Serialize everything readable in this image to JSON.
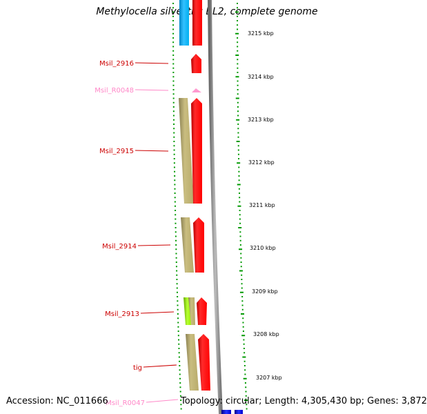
{
  "title": "Methylocella silvestris BL2, complete genome",
  "footer": {
    "accession": "Accession: NC_011666",
    "stats": "Topology: circular; Length: 4,305,430 bp; Genes: 3,872"
  },
  "ruler": {
    "unit": "kbp",
    "ticks": [
      {
        "label": "3215 kbp"
      },
      {
        "label": "3214 kbp"
      },
      {
        "label": "3213 kbp"
      },
      {
        "label": "3212 kbp"
      },
      {
        "label": "3211 kbp"
      },
      {
        "label": "3210 kbp"
      },
      {
        "label": "3209 kbp"
      },
      {
        "label": "3208 kbp"
      },
      {
        "label": "3207 kbp"
      }
    ]
  },
  "gene_labels": [
    {
      "text": "Msil_2916",
      "color": "#cc0000"
    },
    {
      "text": "Msil_R0048",
      "color": "#ff88c8"
    },
    {
      "text": "Msil_2915",
      "color": "#cc0000"
    },
    {
      "text": "Msil_2914",
      "color": "#cc0000"
    },
    {
      "text": "Msil_2913",
      "color": "#cc0000"
    },
    {
      "text": "tig",
      "color": "#cc0000"
    },
    {
      "text": "Msil_R0047",
      "color": "#ff88c8"
    }
  ],
  "colors": {
    "gene": "#ff0000",
    "cds_olive": "#c2b574",
    "cds_cyan": "#00b0f0",
    "cds_lime": "#99ee00",
    "rna": "#ff9ad0",
    "backbone": "#888888",
    "dots": "#009900",
    "blue_feature": "#0000cc",
    "label_gene": "#cc0000",
    "label_rna": "#ff88c8"
  },
  "icons": [
    "gene-arrow",
    "rna-arrow"
  ]
}
